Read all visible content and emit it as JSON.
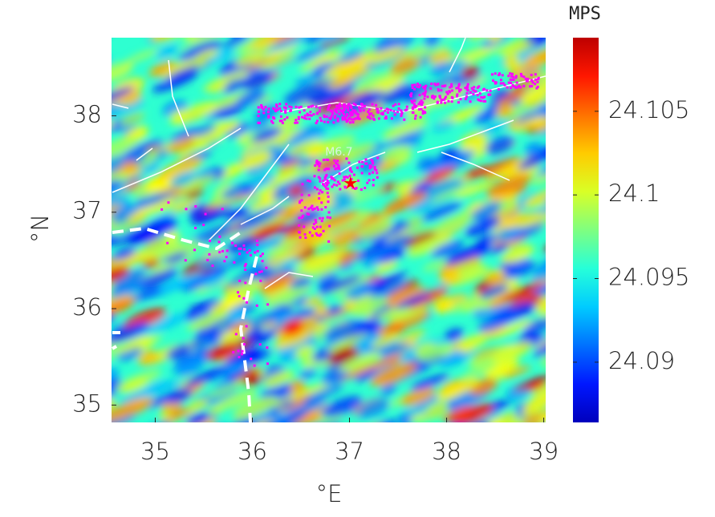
{
  "chart_data": {
    "type": "heatmap",
    "xlabel": "°E",
    "ylabel": "°N",
    "xlim": [
      34.55,
      39.02
    ],
    "ylim": [
      34.82,
      38.81
    ],
    "xticks": [
      35,
      36,
      37,
      38,
      39
    ],
    "yticks": [
      35,
      36,
      37,
      38
    ],
    "colorbar": {
      "label": "MPS",
      "lim": [
        24.0864,
        24.1094
      ],
      "ticks": [
        24.09,
        24.095,
        24.1,
        24.105
      ],
      "colormap": "jet"
    },
    "annotations": [
      {
        "text": "M6.7",
        "x": 36.75,
        "y": 37.62
      }
    ],
    "epicenter": {
      "x": 37.01,
      "y": 37.3,
      "color": "#ff0000"
    },
    "fault_color": "#ffffff",
    "aftershock_color": "#ff00ff"
  }
}
